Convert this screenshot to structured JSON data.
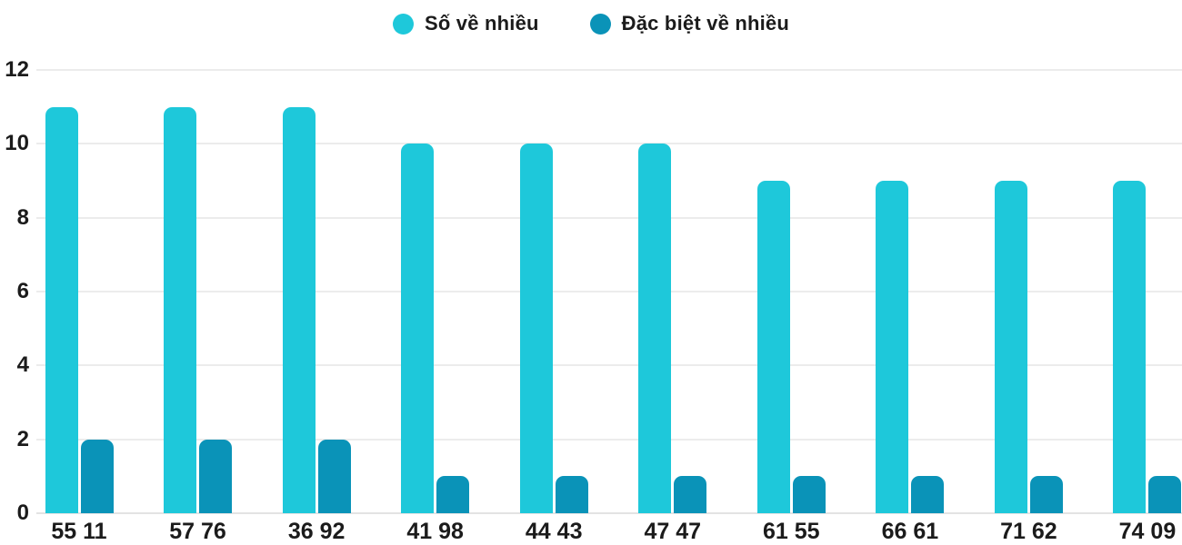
{
  "chart_data": {
    "type": "bar",
    "title": "",
    "categories": [
      "55 11",
      "57 76",
      "36 92",
      "41 98",
      "44 43",
      "47 47",
      "61 55",
      "66 61",
      "71 62",
      "74 09"
    ],
    "series": [
      {
        "name": "Số về nhiều",
        "color": "#1ec8da",
        "values": [
          11,
          11,
          11,
          10,
          10,
          10,
          9,
          9,
          9,
          9
        ]
      },
      {
        "name": "Đặc biệt về nhiều",
        "color": "#0a93b8",
        "values": [
          2,
          2,
          2,
          1,
          1,
          1,
          1,
          1,
          1,
          1
        ]
      }
    ],
    "xlabel": "",
    "ylabel": "",
    "ylim": [
      0,
      12
    ],
    "yticks": [
      0,
      2,
      4,
      6,
      8,
      10,
      12
    ],
    "grid": true,
    "legend_position": "top",
    "colors": {
      "text": "#1b1b1b",
      "gridline": "#ececec",
      "background": "#ffffff"
    }
  }
}
